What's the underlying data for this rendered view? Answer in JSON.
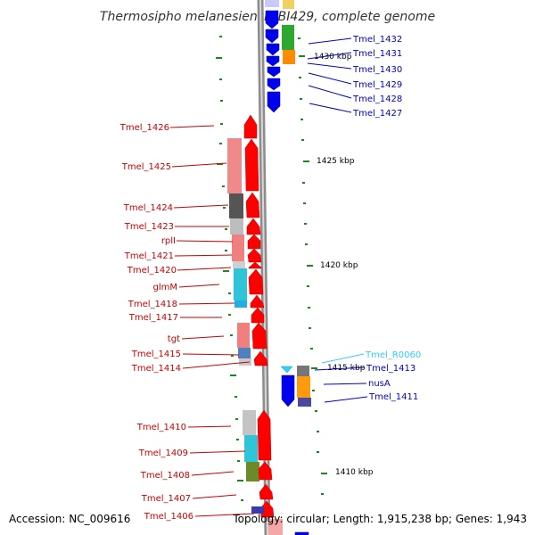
{
  "title": "Thermosipho melanesiensis BI429, complete genome",
  "accession": "Accession: NC_009616",
  "summary": "Topology: circular; Length: 1,915,238 bp; Genes: 1,943",
  "colors": {
    "forward_gene": "#ff0000",
    "reverse_gene": "#0000ff",
    "rna_gene": "#33ccff",
    "left_label": "#cc0000",
    "right_label": "#0000cc",
    "tick": "#008000",
    "backbone": "#888888"
  },
  "scale_labels": [
    "1430 kbp",
    "1425 kbp",
    "1420 kbp",
    "1415 kbp",
    "1410 kbp"
  ],
  "left_genes": [
    "Tmel_1426",
    "Tmel_1425",
    "Tmel_1424",
    "Tmel_1423",
    "rplI",
    "Tmel_1421",
    "Tmel_1420",
    "glmM",
    "Tmel_1418",
    "Tmel_1417",
    "tgt",
    "Tmel_1415",
    "Tmel_1414",
    "Tmel_1410",
    "Tmel_1409",
    "Tmel_1408",
    "Tmel_1407",
    "Tmel_1406"
  ],
  "right_genes": [
    "Tmel_1432",
    "Tmel_1431",
    "Tmel_1430",
    "Tmel_1429",
    "Tmel_1428",
    "Tmel_1427",
    "Tmel_R0060",
    "Tmel_1413",
    "nusA",
    "Tmel_1411"
  ]
}
